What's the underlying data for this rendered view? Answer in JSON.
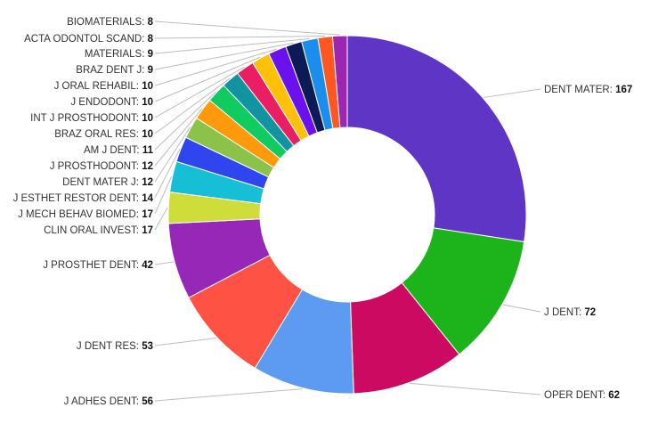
{
  "chart_data": {
    "type": "donut",
    "title": "",
    "start_category": "DENT MATER",
    "slices": [
      {
        "label": "DENT MATER",
        "value": 167,
        "color": "#5e35c4"
      },
      {
        "label": "J DENT",
        "value": 72,
        "color": "#1db31a"
      },
      {
        "label": "OPER DENT",
        "value": 62,
        "color": "#cc0a61"
      },
      {
        "label": "J ADHES DENT",
        "value": 56,
        "color": "#5d9bf2"
      },
      {
        "label": "J DENT RES",
        "value": 53,
        "color": "#fe5244"
      },
      {
        "label": "J PROSTHET DENT",
        "value": 42,
        "color": "#9727b7"
      },
      {
        "label": "CLIN ORAL INVEST",
        "value": 17,
        "color": "#cfdd3a"
      },
      {
        "label": "J MECH BEHAV BIOMED",
        "value": 17,
        "color": "#16bfd6"
      },
      {
        "label": "J ESTHET RESTOR DENT",
        "value": 14,
        "color": "#2f45ee"
      },
      {
        "label": "DENT MATER J",
        "value": 12,
        "color": "#8bc34a"
      },
      {
        "label": "J PROSTHODONT",
        "value": 12,
        "color": "#fe9a0b"
      },
      {
        "label": "AM J DENT",
        "value": 11,
        "color": "#0fcb60"
      },
      {
        "label": "BRAZ ORAL RES",
        "value": 10,
        "color": "#11949f"
      },
      {
        "label": "INT J PROSTHODONT",
        "value": 10,
        "color": "#e91e63"
      },
      {
        "label": "J ENDODONT",
        "value": 10,
        "color": "#ffc107"
      },
      {
        "label": "J ORAL REHABIL",
        "value": 10,
        "color": "#6a11ee"
      },
      {
        "label": "BRAZ DENT J",
        "value": 9,
        "color": "#0c1a55"
      },
      {
        "label": "MATERIALS",
        "value": 9,
        "color": "#1b8ded"
      },
      {
        "label": "ACTA ODONTOL SCAND",
        "value": 8,
        "color": "#fe5722"
      },
      {
        "label": "BIOMATERIALS",
        "value": 8,
        "color": "#9b27b0"
      }
    ]
  }
}
